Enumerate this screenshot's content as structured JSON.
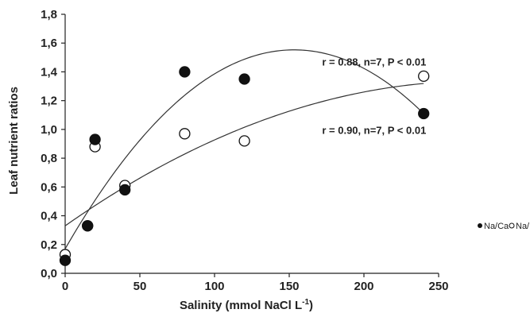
{
  "chart_data": {
    "type": "scatter",
    "xlabel": "Salinity (mmol NaCl L",
    "xlabel_sup": "-1",
    "xlabel_end": ")",
    "ylabel": "Leaf nutrient ratios",
    "xlim": [
      0,
      250
    ],
    "ylim": [
      0.0,
      1.8
    ],
    "x_ticks": [
      0,
      50,
      100,
      150,
      200,
      250
    ],
    "x_tick_labels": [
      "0",
      "50",
      "100",
      "150",
      "200",
      "250"
    ],
    "y_ticks": [
      0.0,
      0.2,
      0.4,
      0.6,
      0.8,
      1.0,
      1.2,
      1.4,
      1.6,
      1.8
    ],
    "y_tick_labels": [
      "0,0",
      "0,2",
      "0,4",
      "0,6",
      "0,8",
      "1,0",
      "1,2",
      "1,4",
      "1,6",
      "1,8"
    ],
    "grid": false,
    "legend_position": "right",
    "series": [
      {
        "name": "Na/Ca",
        "marker": "filled-circle",
        "color": "#111111",
        "x": [
          0,
          15,
          20,
          40,
          80,
          120,
          240
        ],
        "y": [
          0.09,
          0.33,
          0.93,
          0.58,
          1.4,
          1.35,
          1.11
        ],
        "fit": {
          "type": "quadratic",
          "coef": [
            0.17,
            0.01805,
            -5.89e-05
          ],
          "x_range": [
            0,
            240
          ]
        }
      },
      {
        "name": "Na/K",
        "marker": "open-circle",
        "color": "#111111",
        "x": [
          0,
          15,
          20,
          40,
          80,
          120,
          240
        ],
        "y": [
          0.13,
          0.33,
          0.88,
          0.61,
          0.97,
          0.92,
          1.37
        ],
        "fit": {
          "type": "quadratic",
          "coef": [
            0.33,
            0.00729,
            -1.32e-05
          ],
          "x_range": [
            0,
            240
          ]
        }
      }
    ],
    "annotations": [
      {
        "text": "r = 0.88, n=7, P < 0.01",
        "x": 172,
        "y": 1.445
      },
      {
        "text": "r = 0.90, n=7, P < 0.01",
        "x": 172,
        "y": 0.97
      }
    ]
  },
  "legend": {
    "items": [
      {
        "label": "Na/Ca",
        "marker": "filled-circle"
      },
      {
        "label": "Na/K",
        "marker": "open-circle"
      }
    ]
  }
}
